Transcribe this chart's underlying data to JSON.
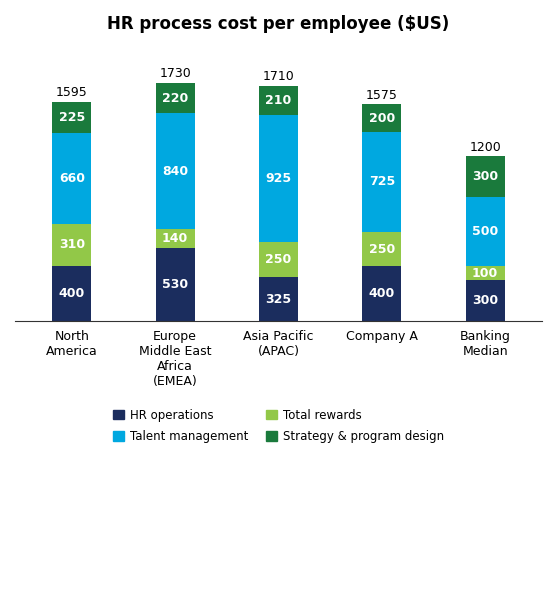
{
  "title": "HR process cost per employee ($US)",
  "categories": [
    "North\nAmerica",
    "Europe\nMiddle East\nAfrica\n(EMEA)",
    "Asia Pacific\n(APAC)",
    "Company A",
    "Banking\nMedian"
  ],
  "hr_operations": [
    400,
    530,
    325,
    400,
    300
  ],
  "total_rewards": [
    310,
    140,
    250,
    250,
    100
  ],
  "talent_management": [
    660,
    840,
    925,
    725,
    500
  ],
  "strategy_program": [
    225,
    220,
    210,
    200,
    300
  ],
  "totals": [
    1595,
    1730,
    1710,
    1575,
    1200
  ],
  "color_hr_operations": "#1b2d5e",
  "color_total_rewards": "#92c848",
  "color_talent_mgmt": "#00a8e0",
  "color_strategy": "#1a7a3c",
  "bar_width": 0.38,
  "title_fontsize": 12,
  "label_fontsize": 9,
  "total_fontsize": 9,
  "legend_fontsize": 8.5
}
